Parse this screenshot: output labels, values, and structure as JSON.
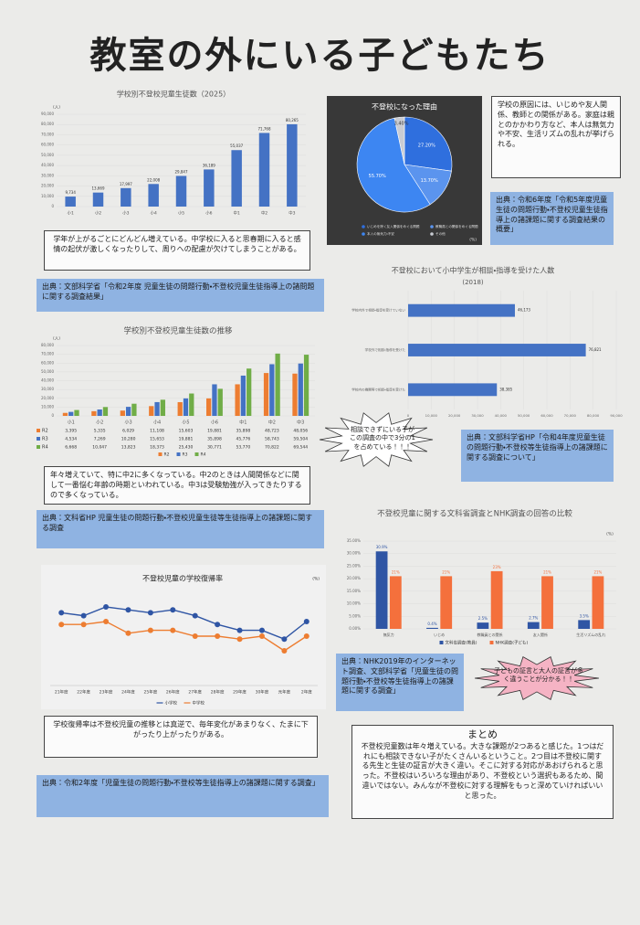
{
  "title": "教室の外にいる子どもたち",
  "captions": [
    "学年が上がるごとにどんどん増えている。中学校に入ると思春期に入ると感情の起伏が激しくなったりして、周りへの配慮が欠けてしまうことがある。",
    "年々増えていて、特に中2に多くなっている。中2のときは人間関係などに関して一番悩む年齢の時期といわれている。中3は受験勉強が入ってきたりするので多くなっている。",
    "学校復帰率は不登校児童の推移とは真逆で、毎年変化があまりなく、たまに下がったり上がったりがある。"
  ],
  "sources": [
    "出典：文部科学省「令和2年度 児童生徒の問題行動・不登校児童生徒指導上の諸問題に関する調査結果」",
    "出典：文科省HP 児童生徒の問題行動・不登校児童生徒等生徒指導上の諸課題に関する調査",
    "出典：令和2年度「児童生徒の問題行動・不登校等生徒指導上の諸課題に関する調査」",
    "出典：令和6年度「令和5年度児童生徒の問題行動・不登校児童生徒指導上の諸課題に関する調査結果の概要」",
    "出典：文部科学省HP「令和4年度児童生徒の問題行動・不登校等生徒指導上の諸課題に関する調査について」",
    "出典：NHK2019年のインターネット調査、文部科学省「児童生徒の問題行動・不登校等生徒指導上の諸課題に関する調査」"
  ],
  "reasons_note": "学校の原因には、いじめや友人関係、教師との関係がある。家庭は親とのかかわり方など、本人は無気力や不安、生活リズムの乱れが挙げられる。",
  "bursts": [
    "相談できずにいる子がこの調査の中で3分の1を占めている！！！",
    "子どもの証言と大人の証言が多く違うことが分かる！！"
  ],
  "summary": {
    "title": "まとめ",
    "body": "不登校児童数は年々増えている。大きな課題が2つあると感じた。1つはだれにも相談できない子がたくさんいるということ。2つ目は不登校に関する先生と生徒の証言が大きく違い。そこに対する対応があおげられると思った。不登校はいろいろな理由があり、不登校という選択もあるため、間違いではない。みんなが不登校に対する理解をもっと深めていければいいと思った。"
  },
  "chart_data": [
    {
      "type": "bar",
      "title": "学校別不登校児童生徒数（2025）",
      "y_label": "(人)",
      "categories": [
        "小1",
        "小2",
        "小3",
        "小4",
        "小5",
        "小6",
        "中1",
        "中2",
        "中3"
      ],
      "values": [
        9734,
        13669,
        17997,
        22008,
        29847,
        36189,
        55037,
        71768,
        80265
      ],
      "value_labels": [
        "9,734",
        "13,669",
        "17,997",
        "22,008",
        "29,847",
        "36,189",
        "55,037",
        "71,768",
        "80,265"
      ],
      "color": "#4472c4",
      "ylim": [
        0,
        90000
      ],
      "yticks": [
        0,
        {
          "value": 10000,
          "label": "10,000"
        },
        {
          "value": 20000,
          "label": "20,000"
        },
        {
          "value": 30000,
          "label": "30,000"
        },
        {
          "value": 40000,
          "label": "40,000"
        },
        {
          "value": 50000,
          "label": "50,000"
        },
        {
          "value": 60000,
          "label": "60,000"
        },
        {
          "value": 70000,
          "label": "70,000"
        },
        {
          "value": 80000,
          "label": "80,000"
        },
        {
          "value": 90000,
          "label": "90,000"
        }
      ]
    },
    {
      "type": "bar",
      "title": "学校別不登校児童生徒数の推移",
      "y_label": "(人)",
      "categories": [
        "小1",
        "小2",
        "小3",
        "小4",
        "小5",
        "小6",
        "中1",
        "中2",
        "中3"
      ],
      "series": [
        {
          "name": "R2",
          "color": "#ed7d31",
          "values": [
            3395,
            5335,
            6029,
            11108,
            15603,
            19881,
            35898,
            48723,
            48056
          ],
          "value_labels": [
            "3,395",
            "5,335",
            "6,029",
            "11,108",
            "15,603",
            "19,881",
            "35,898",
            "48,723",
            "48,056"
          ]
        },
        {
          "name": "R3",
          "color": "#4472c4",
          "values": [
            4534,
            7269,
            10280,
            15653,
            19881,
            35898,
            45776,
            58743,
            59504
          ],
          "value_labels": [
            "4,534",
            "7,269",
            "10,280",
            "15,653",
            "19,881",
            "35,898",
            "45,776",
            "58,743",
            "59,504"
          ]
        },
        {
          "name": "R4",
          "color": "#70ad47",
          "values": [
            6668,
            10047,
            13823,
            18373,
            25430,
            30771,
            53770,
            70822,
            69544
          ],
          "value_labels": [
            "6,668",
            "10,047",
            "13,823",
            "18,373",
            "25,430",
            "30,771",
            "53,770",
            "70,822",
            "69,544"
          ]
        }
      ],
      "ylim": [
        0,
        80000
      ],
      "yticks": [
        0,
        {
          "value": 10000,
          "label": "10,000"
        },
        {
          "value": 20000,
          "label": "20,000"
        },
        {
          "value": 30000,
          "label": "30,000"
        },
        {
          "value": 40000,
          "label": "40,000"
        },
        {
          "value": 50000,
          "label": "50,000"
        },
        {
          "value": 60000,
          "label": "60,000"
        },
        {
          "value": 70000,
          "label": "70,000"
        },
        {
          "value": 80000,
          "label": "80,000"
        }
      ]
    },
    {
      "type": "pie",
      "title": "不登校になった理由",
      "unit": "(%)",
      "categories": [
        "いじめを除く友人関係をめぐる問題",
        "教職員との関係をめぐる問題",
        "本人の無気力・不安",
        "その他"
      ],
      "values": [
        27.2,
        13.7,
        55.7,
        3.4
      ],
      "value_labels": [
        "27.20%",
        "13.70%",
        "55.70%",
        "3.40%"
      ],
      "colors": [
        "#2f6fde",
        "#5b94ee",
        "#3d86f2",
        "#c9ccd3"
      ]
    },
    {
      "type": "barh",
      "title": "不登校において小中学生が相談・指導を受けた人数",
      "subtitle": "(2018)",
      "categories": [
        "学校内外で相談・指導を受けていない",
        "学校外で相談・指導を受けた",
        "学校内の機関等で相談・指導を受けた"
      ],
      "values": [
        46173,
        76821,
        38385
      ],
      "value_labels": [
        "46,173",
        "76,821",
        "38,385"
      ],
      "color": "#4472c4",
      "xlim": [
        0,
        90000
      ],
      "xticks": [
        0,
        {
          "value": 10000,
          "label": "10,000"
        },
        {
          "value": 20000,
          "label": "20,000"
        },
        {
          "value": 30000,
          "label": "30,000"
        },
        {
          "value": 40000,
          "label": "40,000"
        },
        {
          "value": 50000,
          "label": "50,000"
        },
        {
          "value": 60000,
          "label": "60,000"
        },
        {
          "value": 70000,
          "label": "70,000"
        },
        {
          "value": 80000,
          "label": "80,000"
        },
        {
          "value": 90000,
          "label": "90,000"
        }
      ]
    },
    {
      "type": "bar",
      "title": "不登校児童に関する文科省調査とNHK調査の回答の比較",
      "y_label": "(%)",
      "categories": [
        "無気力",
        "いじめ",
        "教職員との関係",
        "友人関係",
        "生活リズムの乱れ"
      ],
      "series": [
        {
          "name": "文科省調査(教員)",
          "color": "#2f55a4",
          "values": [
            30.9,
            0.4,
            2.5,
            2.7,
            3.5
          ],
          "value_labels": [
            "30.9%",
            "0.4%",
            "2.5%",
            "2.7%",
            "3.5%"
          ]
        },
        {
          "name": "NHK調査(子ども)",
          "color": "#f4703c",
          "values": [
            21,
            21,
            23,
            21,
            21
          ],
          "value_labels": [
            "21%",
            "21%",
            "23%",
            "21%",
            "21%"
          ]
        }
      ],
      "ylim": [
        0,
        35
      ],
      "yticks": [
        {
          "value": 0,
          "label": "0.00%"
        },
        {
          "value": 5,
          "label": "5.00%"
        },
        {
          "value": 10,
          "label": "10.00%"
        },
        {
          "value": 15,
          "label": "15.00%"
        },
        {
          "value": 20,
          "label": "20.00%"
        },
        {
          "value": 25,
          "label": "25.00%"
        },
        {
          "value": 30,
          "label": "30.00%"
        },
        {
          "value": 35,
          "label": "35.00%"
        }
      ]
    },
    {
      "type": "line",
      "title": "不登校児童の学校復帰率",
      "y_label": "(%)",
      "categories": [
        "21年度",
        "22年度",
        "23年度",
        "24年度",
        "25年度",
        "26年度",
        "27年度",
        "28年度",
        "29年度",
        "30年度",
        "元年度",
        "2年度"
      ],
      "series": [
        {
          "name": "小学校",
          "color": "#2f55a4",
          "values": [
            33,
            32,
            35,
            34,
            33,
            34,
            32,
            29,
            27,
            27,
            24,
            30
          ]
        },
        {
          "name": "中学校",
          "color": "#ed7d31",
          "values": [
            29,
            29,
            30,
            26,
            27,
            27,
            25,
            25,
            24,
            25,
            20,
            25
          ]
        }
      ],
      "ylim": [
        15,
        40
      ]
    }
  ]
}
